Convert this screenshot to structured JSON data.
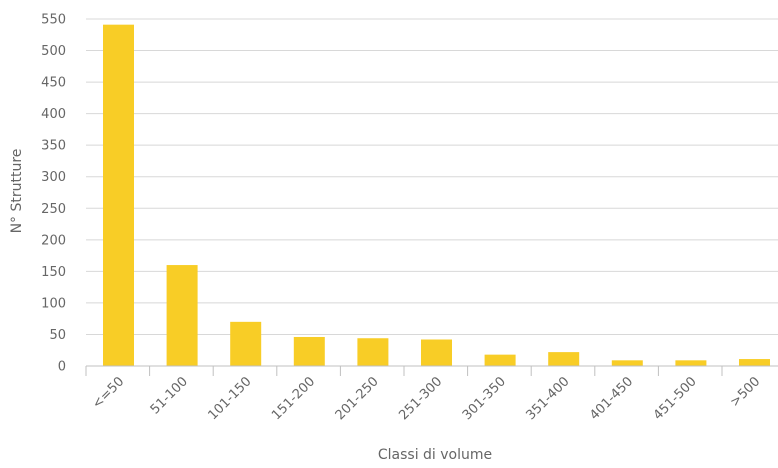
{
  "chart_data": {
    "type": "bar",
    "title": "",
    "xlabel": "Classi di volume",
    "ylabel": "N° Strutture",
    "categories": [
      "<=50",
      "51-100",
      "101-150",
      "151-200",
      "201-250",
      "251-300",
      "301-350",
      "351-400",
      "401-450",
      "451-500",
      ">500"
    ],
    "values": [
      541,
      160,
      70,
      46,
      44,
      42,
      18,
      22,
      9,
      9,
      11
    ],
    "ylim": [
      0,
      550
    ],
    "yticks": [
      0,
      50,
      100,
      150,
      200,
      250,
      300,
      350,
      400,
      450,
      500,
      550
    ],
    "grid": true,
    "legend": "none",
    "colors": {
      "bar": "#F8CD26",
      "grid": "#D8D8D8",
      "axis": "#C0C0C0",
      "text": "#666666"
    }
  }
}
